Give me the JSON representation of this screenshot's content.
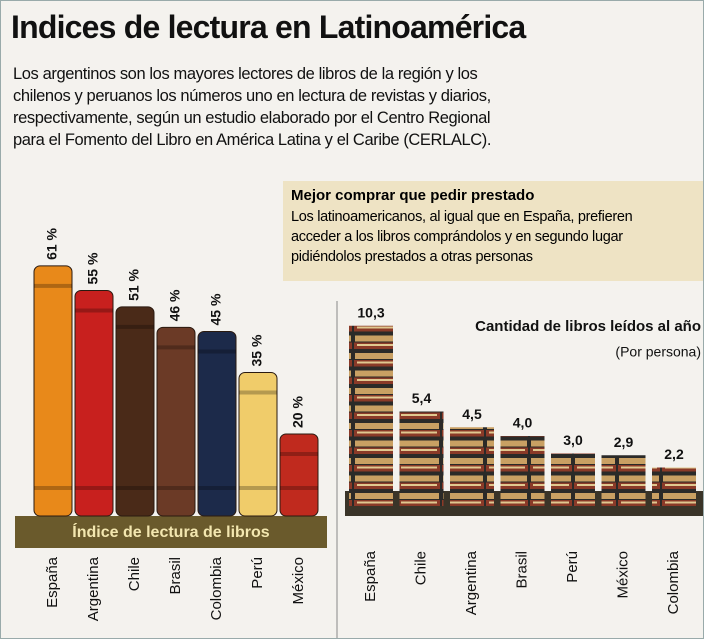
{
  "title": "Indices de lectura en Latinoamérica",
  "intro": [
    "Los argentinos son los mayores lectores de libros de la región y los",
    "chilenos y peruanos los números uno en lectura de revistas y diarios,",
    "respectivamente, según un estudio elaborado por el Centro Regional",
    "para el Fomento del Libro en América Latina y el Caribe (CERLALC)."
  ],
  "box": {
    "title": "Mejor comprar que pedir prestado",
    "lines": [
      "Los latinoamericanos, al igual que en España, prefieren",
      "acceder a los libros comprándolos y en segundo lugar",
      "pidiéndolos prestados a otras personas"
    ]
  },
  "chart_data": [
    {
      "type": "bar",
      "title": "Índice de lectura de libros",
      "categories": [
        "España",
        "Argentina",
        "Chile",
        "Brasil",
        "Colombia",
        "Perú",
        "México"
      ],
      "values": [
        61,
        55,
        51,
        46,
        45,
        35,
        20
      ],
      "value_labels": [
        "61 %",
        "55 %",
        "51 %",
        "46 %",
        "45 %",
        "35 %",
        "20 %"
      ],
      "colors": [
        "#e8891a",
        "#c8201e",
        "#4a2a18",
        "#6b3a26",
        "#1c2a4a",
        "#f0cc6a",
        "#c02a1e"
      ]
    },
    {
      "type": "books",
      "title": "Cantidad de libros leídos al año",
      "subtitle": "(Por persona)",
      "categories": [
        "España",
        "Chile",
        "Argentina",
        "Brasil",
        "Perú",
        "México",
        "Colombia"
      ],
      "values": [
        10.3,
        5.4,
        4.5,
        4.0,
        3.0,
        2.9,
        2.2
      ],
      "value_labels": [
        "10,3",
        "5,4",
        "4,5",
        "4,0",
        "3,0",
        "2,9",
        "2,2"
      ]
    }
  ]
}
